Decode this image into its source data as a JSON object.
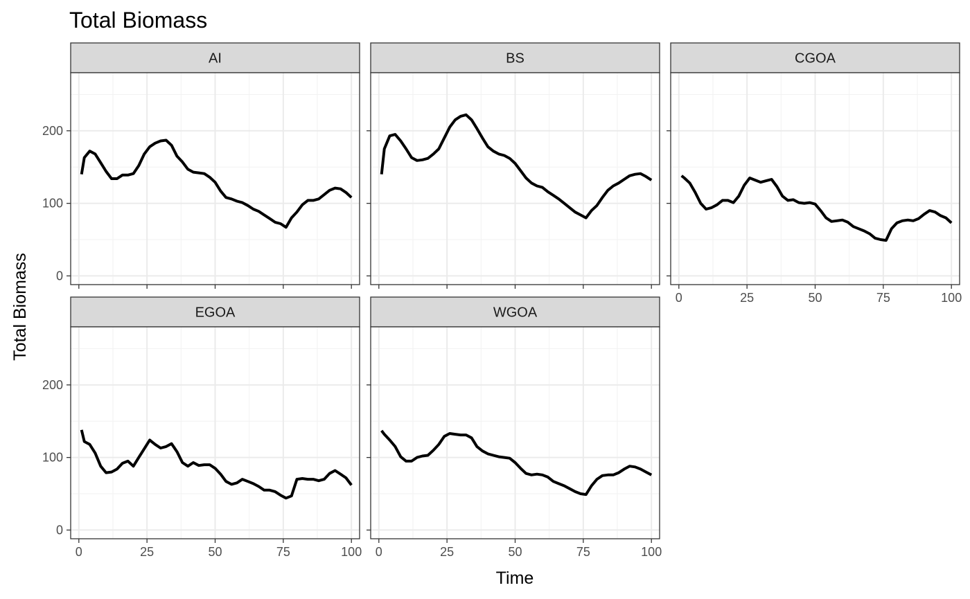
{
  "chart_data": {
    "type": "line",
    "title": "Total Biomass",
    "xlabel": "Time",
    "ylabel": "Total Biomass",
    "xlim": [
      -3,
      103
    ],
    "ylim": [
      -12,
      280
    ],
    "x_ticks": [
      0,
      25,
      50,
      75,
      100
    ],
    "y_ticks": [
      0,
      100,
      200
    ],
    "grid": true,
    "line_color": "#000000",
    "panels": [
      {
        "name": "AI",
        "x": [
          1,
          2,
          4,
          6,
          8,
          10,
          12,
          14,
          16,
          18,
          20,
          22,
          24,
          26,
          28,
          30,
          32,
          34,
          36,
          38,
          40,
          42,
          44,
          46,
          48,
          50,
          52,
          54,
          56,
          58,
          60,
          62,
          64,
          66,
          68,
          70,
          72,
          74,
          76,
          78,
          80,
          82,
          84,
          86,
          88,
          90,
          92,
          94,
          96,
          98,
          100
        ],
        "values": [
          140,
          163,
          172,
          168,
          156,
          144,
          134,
          134,
          139,
          139,
          141,
          152,
          168,
          178,
          183,
          186,
          187,
          180,
          165,
          157,
          147,
          143,
          142,
          141,
          136,
          129,
          117,
          108,
          106,
          103,
          101,
          97,
          92,
          89,
          84,
          79,
          74,
          72,
          67,
          80,
          88,
          98,
          104,
          104,
          106,
          112,
          118,
          121,
          120,
          115,
          108
        ]
      },
      {
        "name": "BS",
        "x": [
          1,
          2,
          4,
          6,
          8,
          10,
          12,
          14,
          16,
          18,
          20,
          22,
          24,
          26,
          28,
          30,
          32,
          34,
          36,
          38,
          40,
          42,
          44,
          46,
          48,
          50,
          52,
          54,
          56,
          58,
          60,
          62,
          64,
          66,
          68,
          70,
          72,
          74,
          76,
          78,
          80,
          82,
          84,
          86,
          88,
          90,
          92,
          94,
          96,
          98,
          100
        ],
        "values": [
          140,
          175,
          193,
          195,
          186,
          175,
          163,
          159,
          160,
          162,
          168,
          175,
          190,
          205,
          215,
          220,
          222,
          215,
          203,
          190,
          178,
          172,
          168,
          166,
          162,
          155,
          145,
          135,
          128,
          124,
          122,
          116,
          111,
          106,
          100,
          94,
          88,
          84,
          80,
          90,
          97,
          108,
          118,
          124,
          128,
          133,
          138,
          140,
          141,
          137,
          132
        ]
      },
      {
        "name": "CGOA",
        "x": [
          1,
          2,
          4,
          6,
          8,
          10,
          12,
          14,
          16,
          18,
          20,
          22,
          24,
          26,
          28,
          30,
          32,
          34,
          36,
          38,
          40,
          42,
          44,
          46,
          48,
          50,
          52,
          54,
          56,
          58,
          60,
          62,
          64,
          66,
          68,
          70,
          72,
          74,
          76,
          78,
          80,
          82,
          84,
          86,
          88,
          90,
          92,
          94,
          96,
          98,
          100
        ],
        "values": [
          138,
          135,
          128,
          115,
          100,
          92,
          94,
          98,
          104,
          104,
          101,
          110,
          125,
          135,
          132,
          129,
          131,
          133,
          123,
          110,
          104,
          105,
          101,
          100,
          101,
          99,
          90,
          80,
          75,
          76,
          77,
          74,
          68,
          65,
          62,
          58,
          52,
          50,
          49,
          65,
          73,
          76,
          77,
          76,
          79,
          85,
          90,
          88,
          83,
          80,
          73
        ]
      },
      {
        "name": "EGOA",
        "x": [
          1,
          2,
          4,
          6,
          8,
          10,
          12,
          14,
          16,
          18,
          20,
          22,
          24,
          26,
          28,
          30,
          32,
          34,
          36,
          38,
          40,
          42,
          44,
          46,
          48,
          50,
          52,
          54,
          56,
          58,
          60,
          62,
          64,
          66,
          68,
          70,
          72,
          74,
          76,
          78,
          80,
          82,
          84,
          86,
          88,
          90,
          92,
          94,
          96,
          98,
          100
        ],
        "values": [
          138,
          122,
          118,
          106,
          88,
          79,
          80,
          84,
          92,
          95,
          88,
          100,
          112,
          124,
          118,
          113,
          115,
          119,
          108,
          93,
          88,
          93,
          89,
          90,
          90,
          85,
          77,
          67,
          63,
          65,
          70,
          67,
          64,
          60,
          55,
          55,
          53,
          48,
          44,
          47,
          70,
          71,
          70,
          70,
          68,
          70,
          78,
          82,
          77,
          72,
          62
        ]
      },
      {
        "name": "WGOA",
        "x": [
          1,
          2,
          4,
          6,
          8,
          10,
          12,
          14,
          16,
          18,
          20,
          22,
          24,
          26,
          28,
          30,
          32,
          34,
          36,
          38,
          40,
          42,
          44,
          46,
          48,
          50,
          52,
          54,
          56,
          58,
          60,
          62,
          64,
          66,
          68,
          70,
          72,
          74,
          76,
          78,
          80,
          82,
          84,
          86,
          88,
          90,
          92,
          94,
          96,
          98,
          100
        ],
        "values": [
          137,
          132,
          124,
          115,
          101,
          95,
          95,
          100,
          102,
          103,
          110,
          118,
          129,
          133,
          132,
          131,
          131,
          127,
          115,
          109,
          105,
          103,
          101,
          100,
          99,
          93,
          85,
          78,
          76,
          77,
          76,
          73,
          67,
          64,
          61,
          57,
          53,
          50,
          49,
          61,
          70,
          75,
          76,
          76,
          79,
          84,
          88,
          87,
          84,
          80,
          76
        ]
      }
    ]
  }
}
